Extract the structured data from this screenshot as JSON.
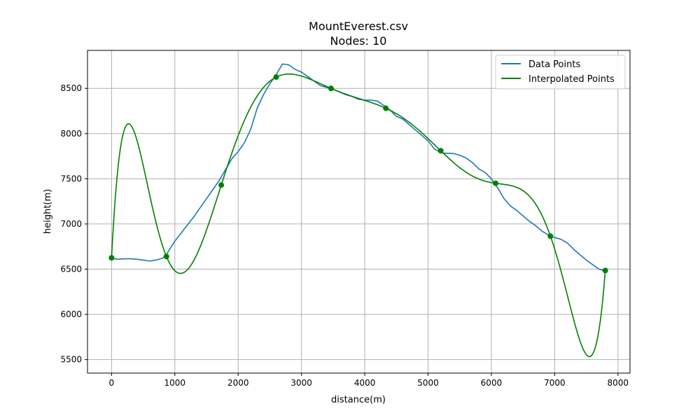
{
  "chart_data": {
    "type": "line",
    "title": "MountEverest.csv",
    "subtitle": "Nodes: 10",
    "xlabel": "distance(m)",
    "ylabel": "height(m)",
    "xlim": [
      -380,
      8190
    ],
    "ylim": [
      5350,
      8920
    ],
    "xticks": [
      0,
      1000,
      2000,
      3000,
      4000,
      5000,
      6000,
      7000,
      8000
    ],
    "yticks": [
      5500,
      6000,
      6500,
      7000,
      7500,
      8000,
      8500
    ],
    "grid": true,
    "legend_position": "top-right",
    "series": [
      {
        "name": "Data Points",
        "color": "#1f77b4",
        "x": [
          0,
          100,
          200,
          300,
          400,
          500,
          600,
          700,
          800,
          850,
          900,
          1000,
          1100,
          1200,
          1300,
          1400,
          1500,
          1600,
          1700,
          1800,
          1900,
          2000,
          2100,
          2200,
          2300,
          2400,
          2500,
          2600,
          2700,
          2800,
          2900,
          3000,
          3100,
          3200,
          3300,
          3400,
          3500,
          3600,
          3700,
          3800,
          3900,
          4000,
          4100,
          4200,
          4300,
          4400,
          4500,
          4600,
          4700,
          4800,
          4900,
          5000,
          5100,
          5200,
          5300,
          5400,
          5500,
          5600,
          5700,
          5800,
          5900,
          6000,
          6100,
          6200,
          6300,
          6400,
          6500,
          6600,
          6700,
          6800,
          6900,
          7000,
          7100,
          7200,
          7300,
          7400,
          7500,
          7600,
          7700,
          7800
        ],
        "y": [
          6620,
          6610,
          6615,
          6615,
          6610,
          6600,
          6590,
          6600,
          6620,
          6640,
          6700,
          6810,
          6900,
          6990,
          7080,
          7180,
          7280,
          7380,
          7480,
          7600,
          7720,
          7800,
          7900,
          8050,
          8280,
          8430,
          8550,
          8650,
          8770,
          8760,
          8710,
          8680,
          8630,
          8580,
          8530,
          8510,
          8490,
          8460,
          8430,
          8410,
          8380,
          8370,
          8370,
          8360,
          8310,
          8260,
          8190,
          8160,
          8100,
          8040,
          7980,
          7920,
          7830,
          7790,
          7780,
          7780,
          7760,
          7730,
          7680,
          7610,
          7570,
          7500,
          7400,
          7280,
          7200,
          7150,
          7090,
          7030,
          6980,
          6920,
          6880,
          6850,
          6830,
          6790,
          6720,
          6660,
          6600,
          6550,
          6500,
          6480
        ]
      },
      {
        "name": "Interpolated Points",
        "color": "#008000",
        "x": [
          0,
          867,
          1733,
          2600,
          3467,
          4333,
          5200,
          6067,
          6933,
          7800
        ],
        "y": [
          6625,
          6640,
          7430,
          8625,
          8500,
          8280,
          7810,
          7450,
          6865,
          6485
        ]
      }
    ]
  }
}
